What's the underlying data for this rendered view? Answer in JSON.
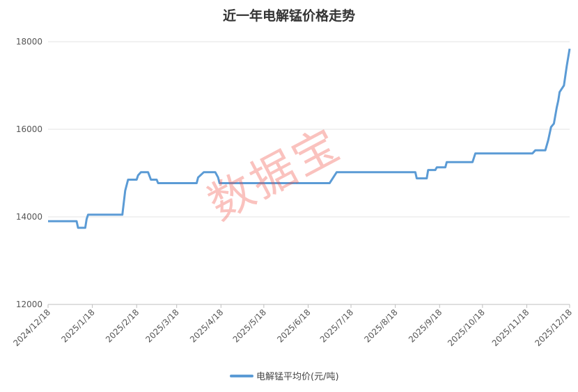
{
  "chart_data": {
    "type": "line",
    "title": "近一年电解锰价格走势",
    "xlabel": "",
    "ylabel": "",
    "ylim": [
      12000,
      18000
    ],
    "yticks": [
      12000,
      14000,
      16000,
      18000
    ],
    "xlim": [
      "2024-12-18",
      "2025-12-18"
    ],
    "xtick_labels": [
      "2024/12/18",
      "2025/1/18",
      "2025/2/18",
      "2025/3/18",
      "2025/4/18",
      "2025/5/18",
      "2025/6/18",
      "2025/7/18",
      "2025/8/18",
      "2025/9/18",
      "2025/10/18",
      "2025/11/18",
      "2025/12/18"
    ],
    "xticks": [
      "2024-12-18",
      "2025-01-18",
      "2025-02-18",
      "2025-03-18",
      "2025-04-18",
      "2025-05-18",
      "2025-06-18",
      "2025-07-18",
      "2025-08-18",
      "2025-09-18",
      "2025-10-18",
      "2025-11-18",
      "2025-12-18"
    ],
    "grid": "horizontal",
    "legend_position": "bottom",
    "color": "#5b9bd5",
    "series": [
      {
        "name": "电解锰平均价(元/吨)",
        "points": [
          [
            "2024-12-18",
            13900
          ],
          [
            "2025-01-07",
            13900
          ],
          [
            "2025-01-08",
            13750
          ],
          [
            "2025-01-13",
            13750
          ],
          [
            "2025-01-14",
            13950
          ],
          [
            "2025-01-15",
            14050
          ],
          [
            "2025-02-08",
            14050
          ],
          [
            "2025-02-10",
            14600
          ],
          [
            "2025-02-12",
            14850
          ],
          [
            "2025-02-18",
            14850
          ],
          [
            "2025-02-19",
            14950
          ],
          [
            "2025-02-21",
            15020
          ],
          [
            "2025-02-26",
            15020
          ],
          [
            "2025-02-28",
            14850
          ],
          [
            "2025-03-04",
            14850
          ],
          [
            "2025-03-05",
            14770
          ],
          [
            "2025-04-01",
            14770
          ],
          [
            "2025-04-02",
            14900
          ],
          [
            "2025-04-06",
            15020
          ],
          [
            "2025-04-14",
            15020
          ],
          [
            "2025-04-16",
            14900
          ],
          [
            "2025-04-17",
            14770
          ],
          [
            "2025-07-03",
            14770
          ],
          [
            "2025-07-08",
            15020
          ],
          [
            "2025-09-01",
            15020
          ],
          [
            "2025-09-02",
            14880
          ],
          [
            "2025-09-09",
            14880
          ],
          [
            "2025-09-10",
            15070
          ],
          [
            "2025-09-15",
            15070
          ],
          [
            "2025-09-16",
            15130
          ],
          [
            "2025-09-22",
            15130
          ],
          [
            "2025-09-23",
            15250
          ],
          [
            "2025-10-11",
            15250
          ],
          [
            "2025-10-13",
            15450
          ],
          [
            "2025-11-22",
            15450
          ],
          [
            "2025-11-24",
            15520
          ],
          [
            "2025-12-01",
            15520
          ],
          [
            "2025-12-03",
            15750
          ],
          [
            "2025-12-05",
            16050
          ],
          [
            "2025-12-07",
            16130
          ],
          [
            "2025-12-09",
            16500
          ],
          [
            "2025-12-10",
            16650
          ],
          [
            "2025-12-11",
            16850
          ],
          [
            "2025-12-14",
            17000
          ],
          [
            "2025-12-16",
            17450
          ],
          [
            "2025-12-18",
            17840
          ]
        ]
      }
    ]
  },
  "watermark": "数据宝"
}
